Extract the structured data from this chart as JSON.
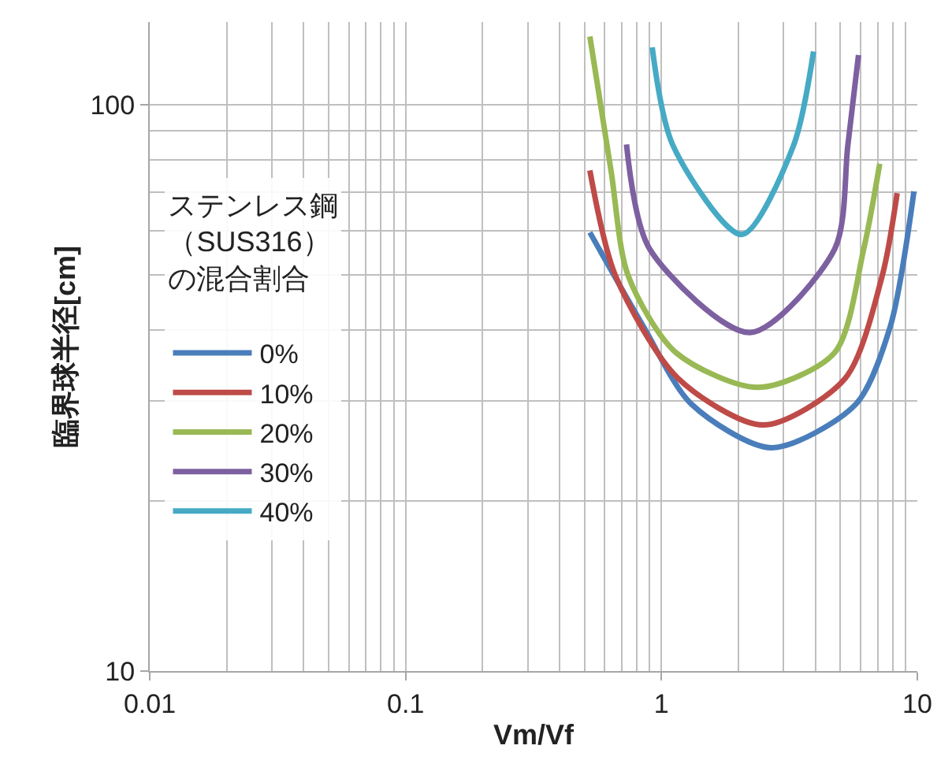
{
  "chart_data": {
    "type": "line",
    "xlabel": "Vm/Vf",
    "ylabel": "臨界球半径[cm]",
    "legend_title": "ステンレス鋼（SUS316）の混合割合",
    "log": "xy",
    "grid": true,
    "legend": "left",
    "marker": "none",
    "line_style": "solid",
    "xlim": [
      0.01,
      10
    ],
    "xticks": [
      0.01,
      0.1,
      1,
      10
    ],
    "ylim": [
      10,
      140
    ],
    "yticks": [
      10,
      100
    ],
    "series": [
      {
        "name": "0%",
        "color": "#4a7ebb",
        "x": [
          0.525,
          0.85,
          1.31,
          2.69,
          5.75,
          7.84,
          9.7
        ],
        "values": [
          59.5,
          40.6,
          29.6,
          24.8,
          29.6,
          40.6,
          70.3
        ]
      },
      {
        "name": "10%",
        "color": "#be4b48",
        "x": [
          0.525,
          0.66,
          1.16,
          2.5,
          5.23,
          7.3,
          8.34
        ],
        "values": [
          76.6,
          50,
          32.9,
          27.2,
          32.9,
          50,
          69.8
        ]
      },
      {
        "name": "20%",
        "color": "#98b954",
        "x": [
          0.525,
          0.636,
          0.74,
          1.14,
          2.38,
          4.75,
          6.17,
          7.13
        ],
        "values": [
          132,
          76.2,
          50,
          36.5,
          31.7,
          36.5,
          55.6,
          78.7
        ]
      },
      {
        "name": "30%",
        "color": "#7d60a0",
        "x": [
          0.73,
          0.9,
          2.22,
          4.75,
          5.35,
          5.89
        ],
        "values": [
          85.1,
          55.6,
          39.6,
          55.6,
          84.7,
          122.4
        ]
      },
      {
        "name": "40%",
        "color": "#46aac5",
        "x": [
          0.92,
          1.11,
          2.06,
          3.28,
          3.93
        ],
        "values": [
          126.3,
          84.7,
          59.0,
          84.7,
          124.2
        ]
      }
    ]
  }
}
